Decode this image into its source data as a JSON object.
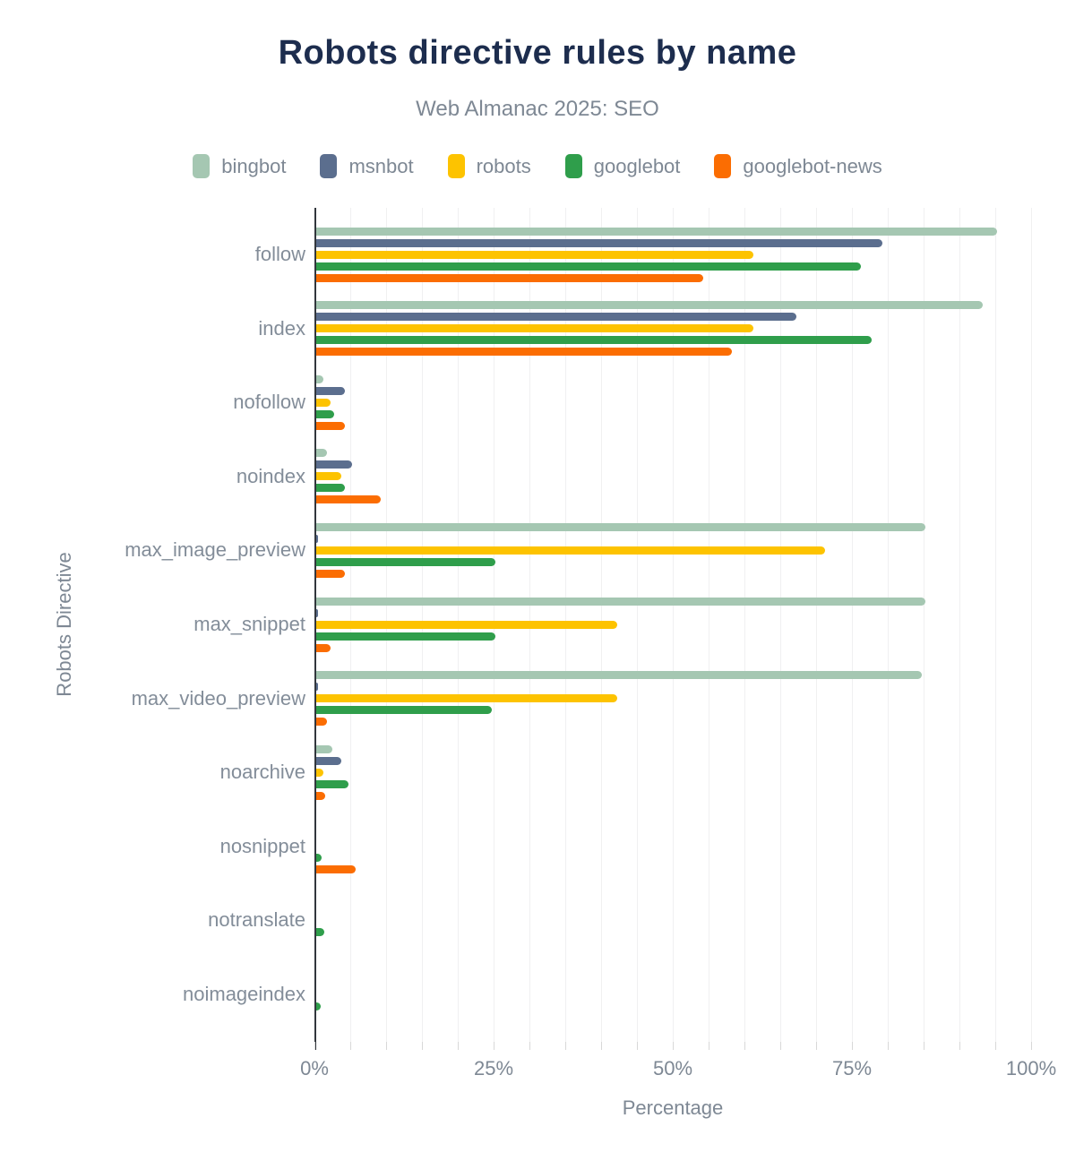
{
  "title": "Robots directive rules by name",
  "subtitle": "Web Almanac 2025: SEO",
  "colors": {
    "title_text": "#1d2d4e",
    "muted_text": "#7e8894",
    "category_text": "#838d99",
    "axis_line": "#32373d",
    "gridline": "#f0f0f1",
    "tick": "#d8d8d8"
  },
  "chart_data": {
    "type": "bar",
    "orientation": "horizontal",
    "title": "Robots directive rules by name",
    "subtitle": "Web Almanac 2025: SEO",
    "xlabel": "Percentage",
    "ylabel": "Robots Directive",
    "xlim": [
      0,
      100
    ],
    "xtick_interval": 25,
    "minor_grid_interval": 5,
    "xticks": [
      "0%",
      "25%",
      "50%",
      "75%",
      "100%"
    ],
    "legend_position": "top",
    "grid": "vertical minor gridlines every 5%",
    "categories": [
      "follow",
      "index",
      "nofollow",
      "noindex",
      "max_image_preview",
      "max_snippet",
      "max_video_preview",
      "noarchive",
      "nosnippet",
      "notranslate",
      "noimageindex"
    ],
    "series": [
      {
        "name": "bingbot",
        "color": "#a5c7b2",
        "values": [
          95,
          93,
          1,
          1.5,
          85,
          85,
          84.5,
          2.3,
          0,
          0,
          0
        ]
      },
      {
        "name": "msnbot",
        "color": "#5b6e8e",
        "values": [
          79,
          67,
          4,
          5,
          0.3,
          0.3,
          0.3,
          3.5,
          0,
          0,
          0
        ]
      },
      {
        "name": "robots",
        "color": "#fdc300",
        "values": [
          61,
          61,
          2,
          3.5,
          71,
          42,
          42,
          1,
          0,
          0,
          0
        ]
      },
      {
        "name": "googlebot",
        "color": "#2f9e4b",
        "values": [
          76,
          77.5,
          2.5,
          4,
          25,
          25,
          24.5,
          4.5,
          0.8,
          1.1,
          0.6
        ]
      },
      {
        "name": "googlebot-news",
        "color": "#fb6d02",
        "values": [
          54,
          58,
          4,
          9,
          4,
          2,
          1.5,
          1.3,
          5.5,
          0,
          0
        ]
      }
    ]
  }
}
